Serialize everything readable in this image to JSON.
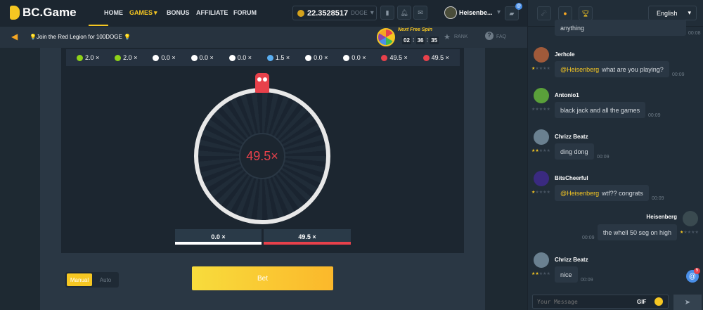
{
  "header": {
    "logo": "BC.Game",
    "nav": [
      "HOME",
      "GAMES",
      "BONUS",
      "AFFILIATE",
      "FORUM"
    ],
    "active": "GAMES",
    "balance": "22.3528517",
    "currency": "DOGE",
    "username": "Heisenbe...",
    "notif_badge": "@"
  },
  "subbar": {
    "announcement": "💡Join the Red Legion for 100DOGE 💡",
    "spin_label": "Next Free Spin",
    "spin_timer": [
      "02",
      "36",
      "35"
    ],
    "rank": "RANK",
    "faq": "FAQ"
  },
  "history": [
    {
      "v": "2.0 ×",
      "c": "#8fd219"
    },
    {
      "v": "2.0 ×",
      "c": "#8fd219"
    },
    {
      "v": "0.0 ×",
      "c": "#ffffff"
    },
    {
      "v": "0.0 ×",
      "c": "#ffffff"
    },
    {
      "v": "0.0 ×",
      "c": "#ffffff"
    },
    {
      "v": "1.5 ×",
      "c": "#5aaef0"
    },
    {
      "v": "0.0 ×",
      "c": "#ffffff"
    },
    {
      "v": "0.0 ×",
      "c": "#ffffff"
    },
    {
      "v": "49.5 ×",
      "c": "#e8414b"
    },
    {
      "v": "49.5 ×",
      "c": "#e8414b"
    }
  ],
  "wheel": {
    "result": "49.5×",
    "options": [
      {
        "label": "0.0 ×",
        "color": "#ffffff"
      },
      {
        "label": "49.5 ×",
        "color": "#e8414b"
      }
    ]
  },
  "controls": {
    "modes": [
      "Manual",
      "Auto"
    ],
    "active_mode": "Manual",
    "bet": "Bet"
  },
  "chat": {
    "language": "English",
    "messages": [
      {
        "user": "",
        "text": "anything",
        "time": "00:08",
        "stars": 0
      },
      {
        "user": "Jerhole",
        "mention": "@Heisenberg",
        "text": "what are you playing?",
        "time": "00:09",
        "stars": 1
      },
      {
        "user": "Antonio1",
        "text": "black jack and all the games",
        "time": "00:09",
        "stars": 0
      },
      {
        "user": "Chrizz Beatz",
        "text": "ding dong",
        "time": "00:09",
        "stars": 2
      },
      {
        "user": "BitsCheerful",
        "mention": "@Heisenberg",
        "text": "wtf?? congrats",
        "time": "00:09",
        "stars": 1
      },
      {
        "user": "Heisenberg",
        "text": "the whell 50 seg on high",
        "time": "00:09",
        "stars": 1,
        "self": true
      },
      {
        "user": "Chrizz Beatz",
        "text": "nice",
        "time": "00:09",
        "stars": 2
      }
    ],
    "mention_count": "5",
    "input_placeholder": "Your Message",
    "gif": "GIF"
  }
}
